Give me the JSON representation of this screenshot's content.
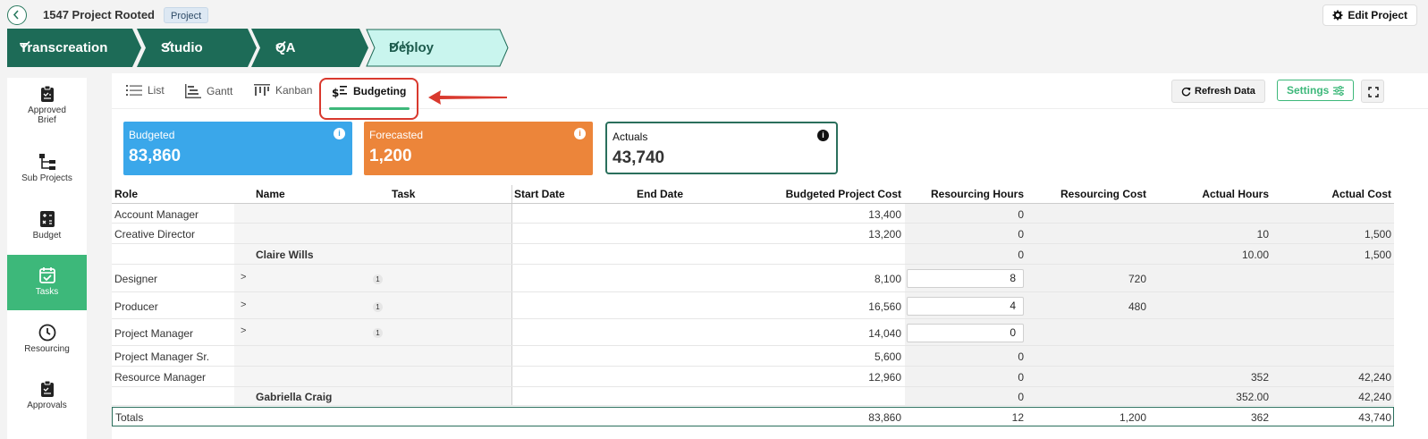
{
  "header": {
    "project_title": "1547 Project Rooted",
    "project_tag": "Project",
    "edit_label": "Edit Project"
  },
  "stages": [
    {
      "label": "Transcreation",
      "done": true
    },
    {
      "label": "Studio",
      "done": true
    },
    {
      "label": "QA",
      "done": true
    },
    {
      "label": "Deploy",
      "done": true,
      "active": true
    }
  ],
  "sidebar": {
    "items": [
      {
        "label_line1": "Approved",
        "label_line2": "Brief",
        "icon": "clipboard-icon"
      },
      {
        "label": "Sub Projects",
        "icon": "hierarchy-icon"
      },
      {
        "label": "Budget",
        "icon": "calculator-icon"
      },
      {
        "label": "Tasks",
        "icon": "calendar-check-icon",
        "active": true
      },
      {
        "label": "Resourcing",
        "icon": "clock-icon"
      },
      {
        "label": "Approvals",
        "icon": "clipboard-check-icon"
      }
    ]
  },
  "tabs": {
    "items": [
      {
        "label": "List",
        "icon": "list-icon"
      },
      {
        "label": "Gantt",
        "icon": "gantt-icon"
      },
      {
        "label": "Kanban",
        "icon": "kanban-icon"
      },
      {
        "label": "Budgeting",
        "icon": "dollar-list-icon",
        "active": true
      }
    ],
    "refresh_label": "Refresh Data",
    "settings_label": "Settings"
  },
  "cards": {
    "budgeted": {
      "title": "Budgeted",
      "value": "83,860",
      "info": "i"
    },
    "forecasted": {
      "title": "Forecasted",
      "value": "1,200",
      "info": "i"
    },
    "actuals": {
      "title": "Actuals",
      "value": "43,740",
      "info": "i"
    }
  },
  "table": {
    "headers": {
      "role": "Role",
      "name": "Name",
      "task": "Task",
      "start_date": "Start Date",
      "end_date": "End Date",
      "budgeted_cost": "Budgeted Project Cost",
      "resourcing_hours": "Resourcing Hours",
      "resourcing_cost": "Resourcing Cost",
      "actual_hours": "Actual Hours",
      "actual_cost": "Actual Cost"
    },
    "rows": [
      {
        "role": "Account Manager",
        "name": "",
        "budget": "13,400",
        "res_hours": "0",
        "res_cost": "",
        "act_hours": "",
        "act_cost": ""
      },
      {
        "role": "Creative Director",
        "name": "",
        "budget": "13,200",
        "res_hours": "0",
        "res_cost": "",
        "act_hours": "10",
        "act_cost": "1,500"
      },
      {
        "role": "",
        "name": "Claire Wills",
        "budget": "",
        "res_hours": "0",
        "res_cost": "",
        "act_hours": "10.00",
        "act_cost": "1,500"
      },
      {
        "role": "Designer",
        "name": "",
        "chevron": ">",
        "task_badge": "1",
        "budget": "8,100",
        "res_hours": "8",
        "res_cost": "720",
        "act_hours": "",
        "act_cost": ""
      },
      {
        "role": "Producer",
        "name": "",
        "chevron": ">",
        "task_badge": "1",
        "budget": "16,560",
        "res_hours": "4",
        "res_cost": "480",
        "act_hours": "",
        "act_cost": ""
      },
      {
        "role": "Project Manager",
        "name": "",
        "chevron": ">",
        "task_badge": "1",
        "budget": "14,040",
        "res_hours": "0",
        "res_cost": "",
        "act_hours": "",
        "act_cost": ""
      },
      {
        "role": "Project Manager Sr.",
        "name": "",
        "budget": "5,600",
        "res_hours": "0",
        "res_cost": "",
        "act_hours": "",
        "act_cost": ""
      },
      {
        "role": "Resource Manager",
        "name": "",
        "budget": "12,960",
        "res_hours": "0",
        "res_cost": "",
        "act_hours": "352",
        "act_cost": "42,240"
      },
      {
        "role": "",
        "name": "Gabriella Craig",
        "budget": "",
        "res_hours": "0",
        "res_cost": "",
        "act_hours": "352.00",
        "act_cost": "42,240"
      }
    ],
    "totals": {
      "label": "Totals",
      "budget": "83,860",
      "res_hours": "12",
      "res_cost": "1,200",
      "act_hours": "362",
      "act_cost": "43,740"
    }
  },
  "colors": {
    "stage_done": "#1d6b57",
    "stage_active": "#c9f5ee",
    "accent_green": "#3db87a",
    "budgeted_blue": "#3aa7ea",
    "forecasted_orange": "#ec853a",
    "annotation_red": "#d9392e"
  }
}
